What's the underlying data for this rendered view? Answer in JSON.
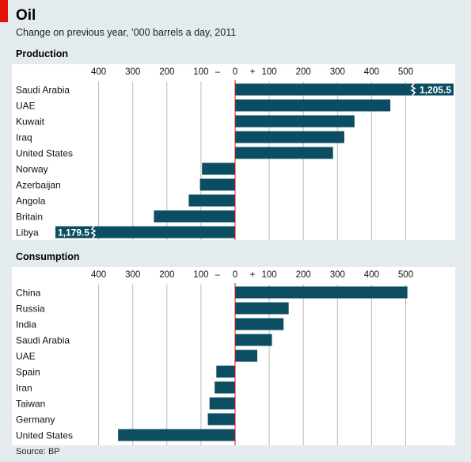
{
  "header": {
    "title": "Oil",
    "subtitle": "Change on previous year, ’000 barrels a day, 2011"
  },
  "source": "Source: BP",
  "colors": {
    "bar": "#0d4d62",
    "accent": "#e3120b",
    "panel_bg": "#ffffff",
    "page_bg": "#e4ebee",
    "grid": "#b9b9b9"
  },
  "chart_data": [
    {
      "type": "bar",
      "orientation": "horizontal",
      "title": "Production",
      "tick_labels": [
        "400",
        "300",
        "200",
        "100",
        "–",
        "0",
        "+",
        "100",
        "200",
        "300",
        "400",
        "500"
      ],
      "xlim": [
        -530,
        600
      ],
      "grid": true,
      "categories": [
        "Saudi Arabia",
        "UAE",
        "Kuwait",
        "Iraq",
        "United States",
        "Norway",
        "Azerbaijan",
        "Angola",
        "Britain",
        "Libya"
      ],
      "values": [
        1205.5,
        455,
        350,
        320,
        287,
        -97,
        -103,
        -136,
        -238,
        -1179.5
      ],
      "data_labels": {
        "Saudi Arabia": "1,205.5",
        "Libya": "1,179.5"
      },
      "axis_break": [
        "Saudi Arabia",
        "Libya"
      ]
    },
    {
      "type": "bar",
      "orientation": "horizontal",
      "title": "Consumption",
      "tick_labels": [
        "400",
        "300",
        "200",
        "100",
        "–",
        "0",
        "+",
        "100",
        "200",
        "300",
        "400",
        "500"
      ],
      "xlim": [
        -530,
        600
      ],
      "grid": true,
      "categories": [
        "China",
        "Russia",
        "India",
        "Saudi Arabia",
        "UAE",
        "Spain",
        "Iran",
        "Taiwan",
        "Germany",
        "United States"
      ],
      "values": [
        505,
        157,
        142,
        108,
        65,
        -55,
        -60,
        -75,
        -80,
        -343
      ]
    }
  ]
}
